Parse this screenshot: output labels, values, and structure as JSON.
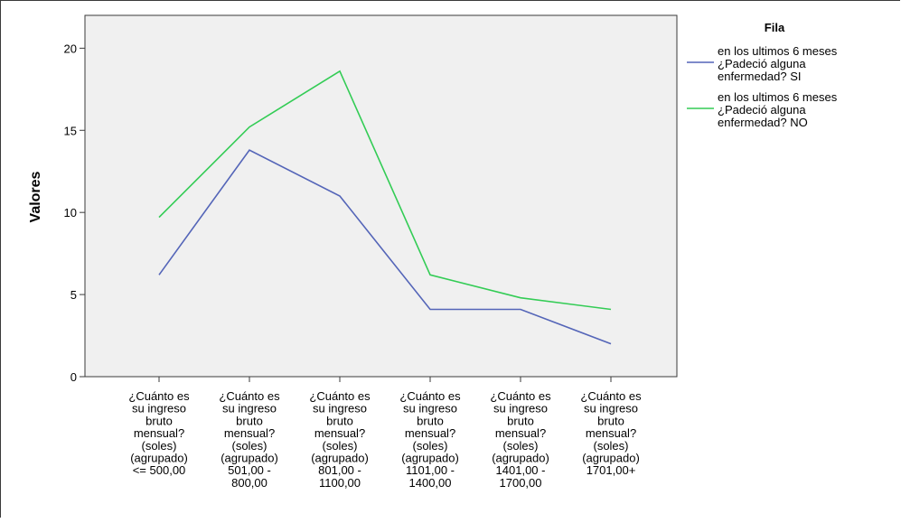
{
  "chart_data": {
    "type": "line",
    "ylabel": "Valores",
    "ylim": [
      0,
      22
    ],
    "yticks": [
      0,
      5,
      10,
      15,
      20
    ],
    "grid": false,
    "legend_position": "right",
    "legend_title": "Fila",
    "plot_background": "#f0f0f0",
    "categories": [
      [
        "¿Cuánto es",
        "su ingreso",
        "bruto",
        "mensual?",
        "(soles)",
        "(agrupado)",
        "<= 500,00"
      ],
      [
        "¿Cuánto es",
        "su ingreso",
        "bruto",
        "mensual?",
        "(soles)",
        "(agrupado)",
        "501,00 -",
        "800,00"
      ],
      [
        "¿Cuánto es",
        "su ingreso",
        "bruto",
        "mensual?",
        "(soles)",
        "(agrupado)",
        "801,00 -",
        "1100,00"
      ],
      [
        "¿Cuánto es",
        "su ingreso",
        "bruto",
        "mensual?",
        "(soles)",
        "(agrupado)",
        "1101,00 -",
        "1400,00"
      ],
      [
        "¿Cuánto es",
        "su ingreso",
        "bruto",
        "mensual?",
        "(soles)",
        "(agrupado)",
        "1401,00 -",
        "1700,00"
      ],
      [
        "¿Cuánto es",
        "su ingreso",
        "bruto",
        "mensual?",
        "(soles)",
        "(agrupado)",
        "1701,00+"
      ]
    ],
    "series": [
      {
        "name_lines": [
          "en los ultimos 6 meses",
          "¿Padeció alguna",
          "enfermedad? SI"
        ],
        "color": "#5465b8",
        "values": [
          6.2,
          13.8,
          11.0,
          4.1,
          4.1,
          2.0
        ]
      },
      {
        "name_lines": [
          "en los ultimos 6 meses",
          "¿Padeció alguna",
          "enfermedad? NO"
        ],
        "color": "#33cc55",
        "values": [
          9.7,
          15.2,
          18.6,
          6.2,
          4.8,
          4.1
        ]
      }
    ]
  }
}
